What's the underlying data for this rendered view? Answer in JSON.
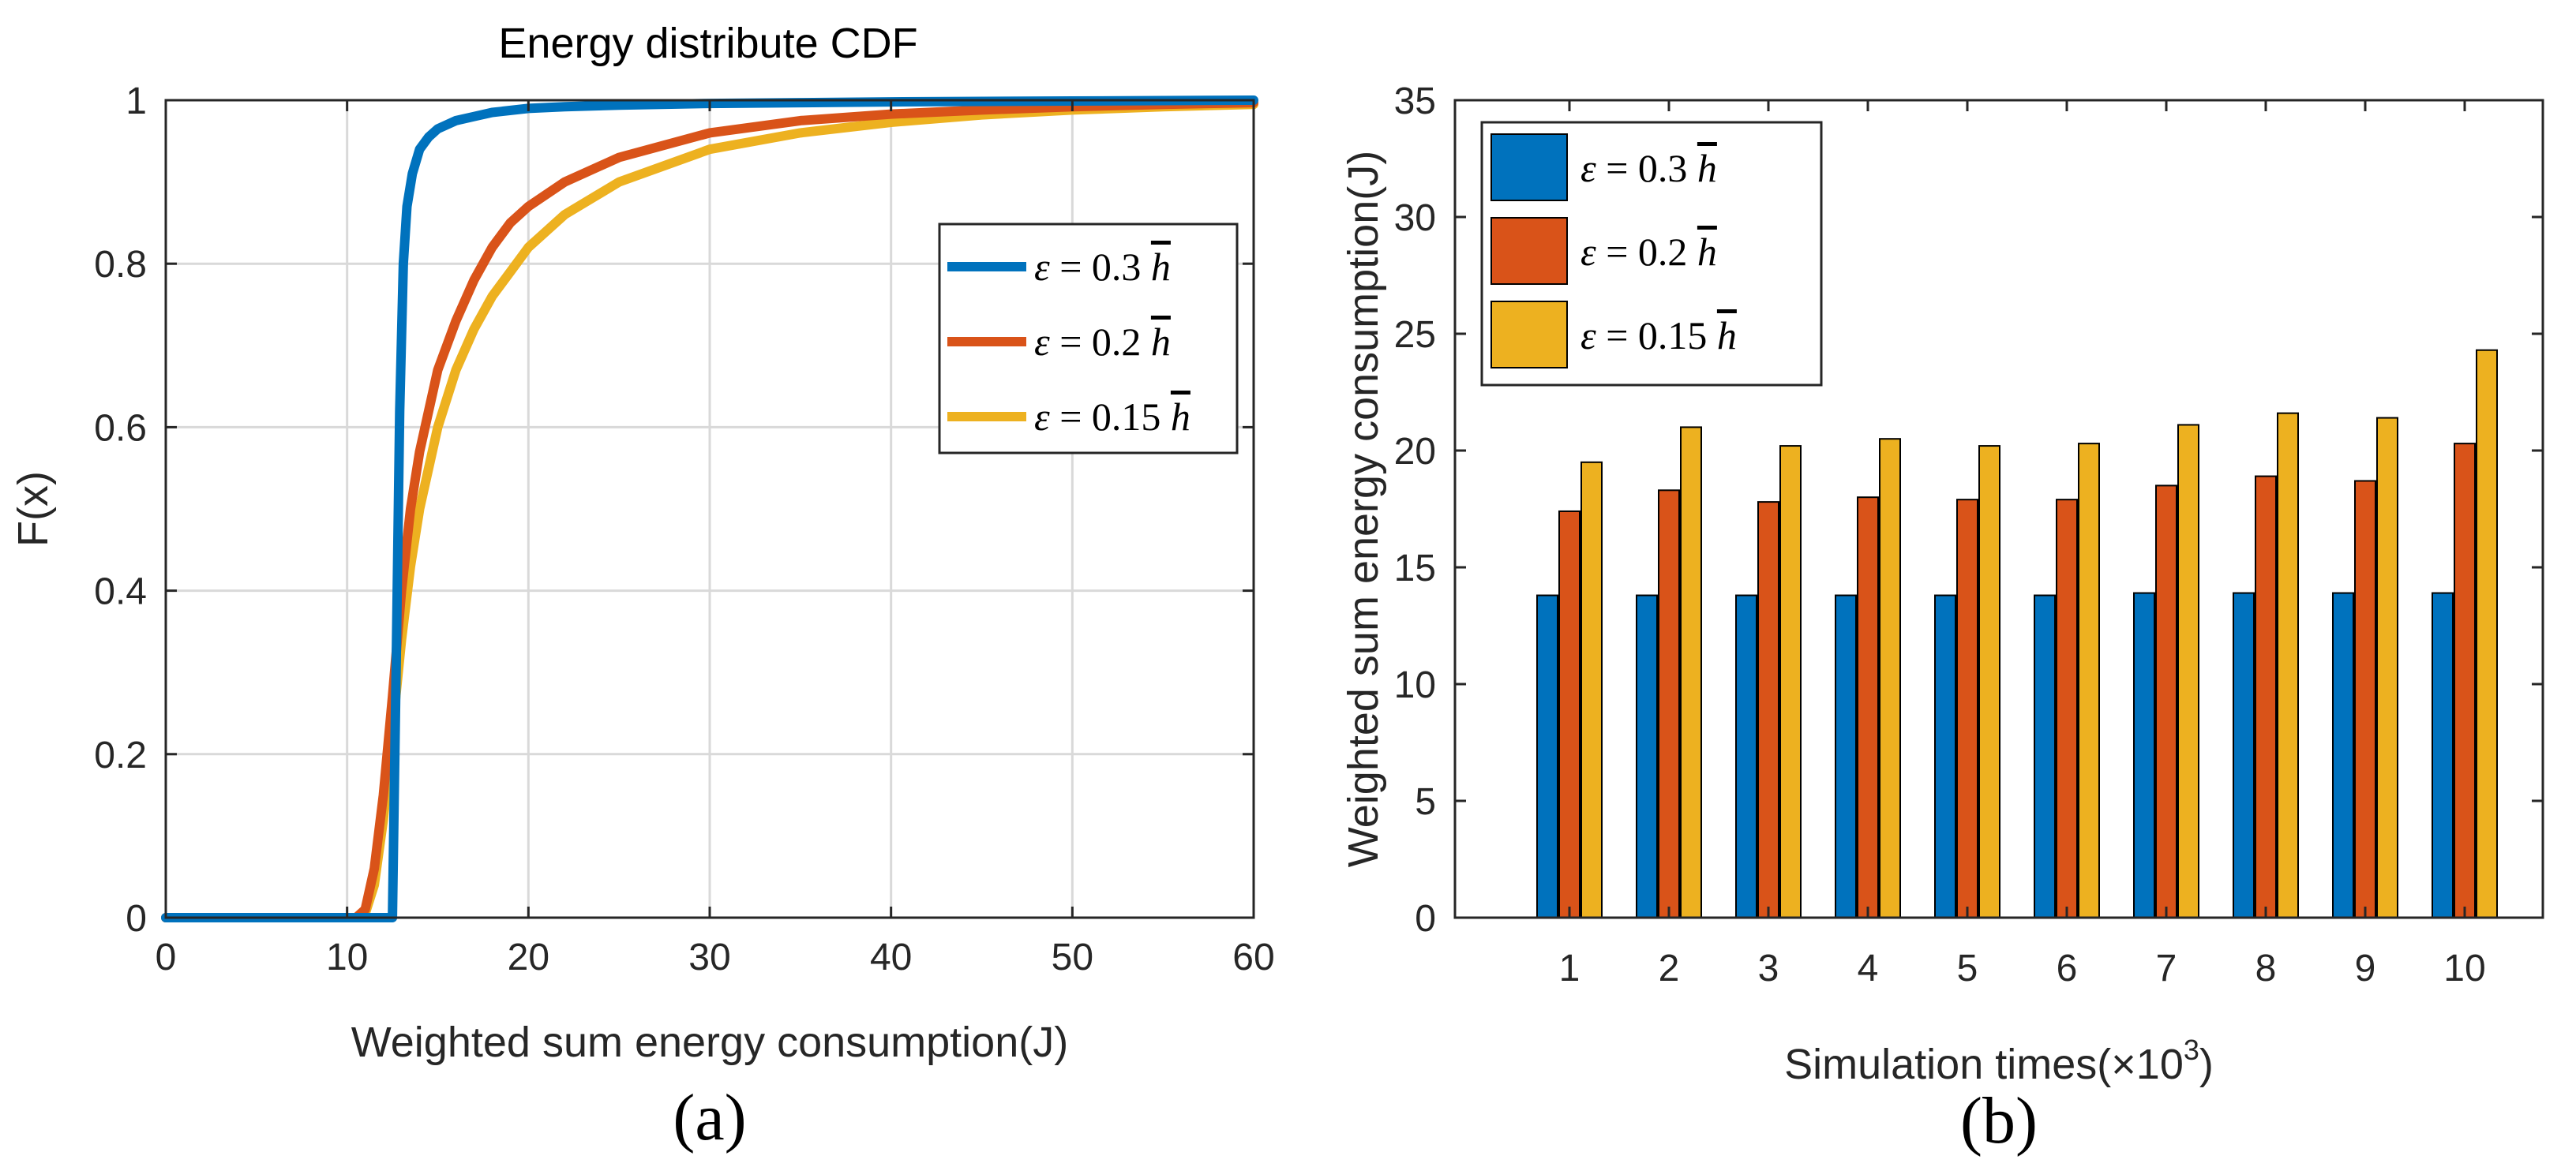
{
  "chart_data": [
    {
      "id": "a",
      "type": "line",
      "title": "Energy distribute CDF",
      "xlabel": "Weighted sum energy consumption(J)",
      "ylabel": "F(x)",
      "panel_label": "(a)",
      "xlim": [
        0,
        60
      ],
      "ylim": [
        0,
        1
      ],
      "xticks": [
        "0",
        "10",
        "20",
        "30",
        "40",
        "50",
        "60"
      ],
      "yticks": [
        "0",
        "0.2",
        "0.4",
        "0.6",
        "0.8",
        "1"
      ],
      "grid": true,
      "legend_position": "center-right",
      "series": [
        {
          "name": "ε = 0.3 h̄",
          "color": "#0072BD",
          "x": [
            12.5,
            12.7,
            12.9,
            13.1,
            13.3,
            13.6,
            14.0,
            14.5,
            15.0,
            16.0,
            17.0,
            18.0,
            20.0,
            22.0,
            25.0,
            30.0,
            35.0,
            40.0,
            50.0,
            60.0
          ],
          "y": [
            0.0,
            0.3,
            0.62,
            0.8,
            0.87,
            0.91,
            0.94,
            0.955,
            0.965,
            0.975,
            0.98,
            0.985,
            0.99,
            0.992,
            0.994,
            0.996,
            0.997,
            0.998,
            0.999,
            1.0
          ]
        },
        {
          "name": "ε = 0.2 h̄",
          "color": "#D95319",
          "x": [
            10.0,
            10.5,
            11.0,
            11.5,
            12.0,
            12.5,
            13.0,
            13.5,
            14.0,
            15.0,
            16.0,
            17.0,
            18.0,
            19.0,
            20.0,
            22.0,
            25.0,
            30.0,
            35.0,
            40.0,
            45.0,
            50.0,
            55.0,
            60.0
          ],
          "y": [
            0.0,
            0.0,
            0.01,
            0.06,
            0.15,
            0.27,
            0.4,
            0.5,
            0.57,
            0.67,
            0.73,
            0.78,
            0.82,
            0.85,
            0.87,
            0.9,
            0.93,
            0.96,
            0.975,
            0.983,
            0.988,
            0.992,
            0.995,
            0.997
          ]
        },
        {
          "name": "ε = 0.15 h̄",
          "color": "#EDB120",
          "x": [
            10.0,
            10.5,
            11.0,
            11.5,
            12.0,
            12.5,
            13.0,
            13.5,
            14.0,
            15.0,
            16.0,
            17.0,
            18.0,
            19.0,
            20.0,
            22.0,
            25.0,
            30.0,
            35.0,
            40.0,
            45.0,
            50.0,
            55.0,
            60.0
          ],
          "y": [
            0.0,
            0.0,
            0.005,
            0.04,
            0.12,
            0.23,
            0.34,
            0.43,
            0.5,
            0.6,
            0.67,
            0.72,
            0.76,
            0.79,
            0.82,
            0.86,
            0.9,
            0.94,
            0.96,
            0.973,
            0.982,
            0.988,
            0.992,
            0.995
          ]
        }
      ]
    },
    {
      "id": "b",
      "type": "bar",
      "xlabel": "Simulation times(×10",
      "xlabel_sup": "3",
      "xlabel_end": ")",
      "ylabel": "Weighted sum energy consumption(J)",
      "panel_label": "(b)",
      "ylim": [
        0,
        35
      ],
      "yticks": [
        "0",
        "5",
        "10",
        "15",
        "20",
        "25",
        "30",
        "35"
      ],
      "categories": [
        "1",
        "2",
        "3",
        "4",
        "5",
        "6",
        "7",
        "8",
        "9",
        "10"
      ],
      "grid": false,
      "legend_position": "top-left",
      "series": [
        {
          "name": "ε = 0.3 h̄",
          "color": "#0072BD",
          "values": [
            13.8,
            13.8,
            13.8,
            13.8,
            13.8,
            13.8,
            13.9,
            13.9,
            13.9,
            13.9
          ]
        },
        {
          "name": "ε = 0.2 h̄",
          "color": "#D95319",
          "values": [
            17.4,
            18.3,
            17.8,
            18.0,
            17.9,
            17.9,
            18.5,
            18.9,
            18.7,
            20.3
          ]
        },
        {
          "name": "ε = 0.15 h̄",
          "color": "#EDB120",
          "values": [
            19.5,
            21.0,
            20.2,
            20.5,
            20.2,
            20.3,
            21.1,
            21.6,
            21.4,
            24.3
          ]
        }
      ]
    }
  ]
}
